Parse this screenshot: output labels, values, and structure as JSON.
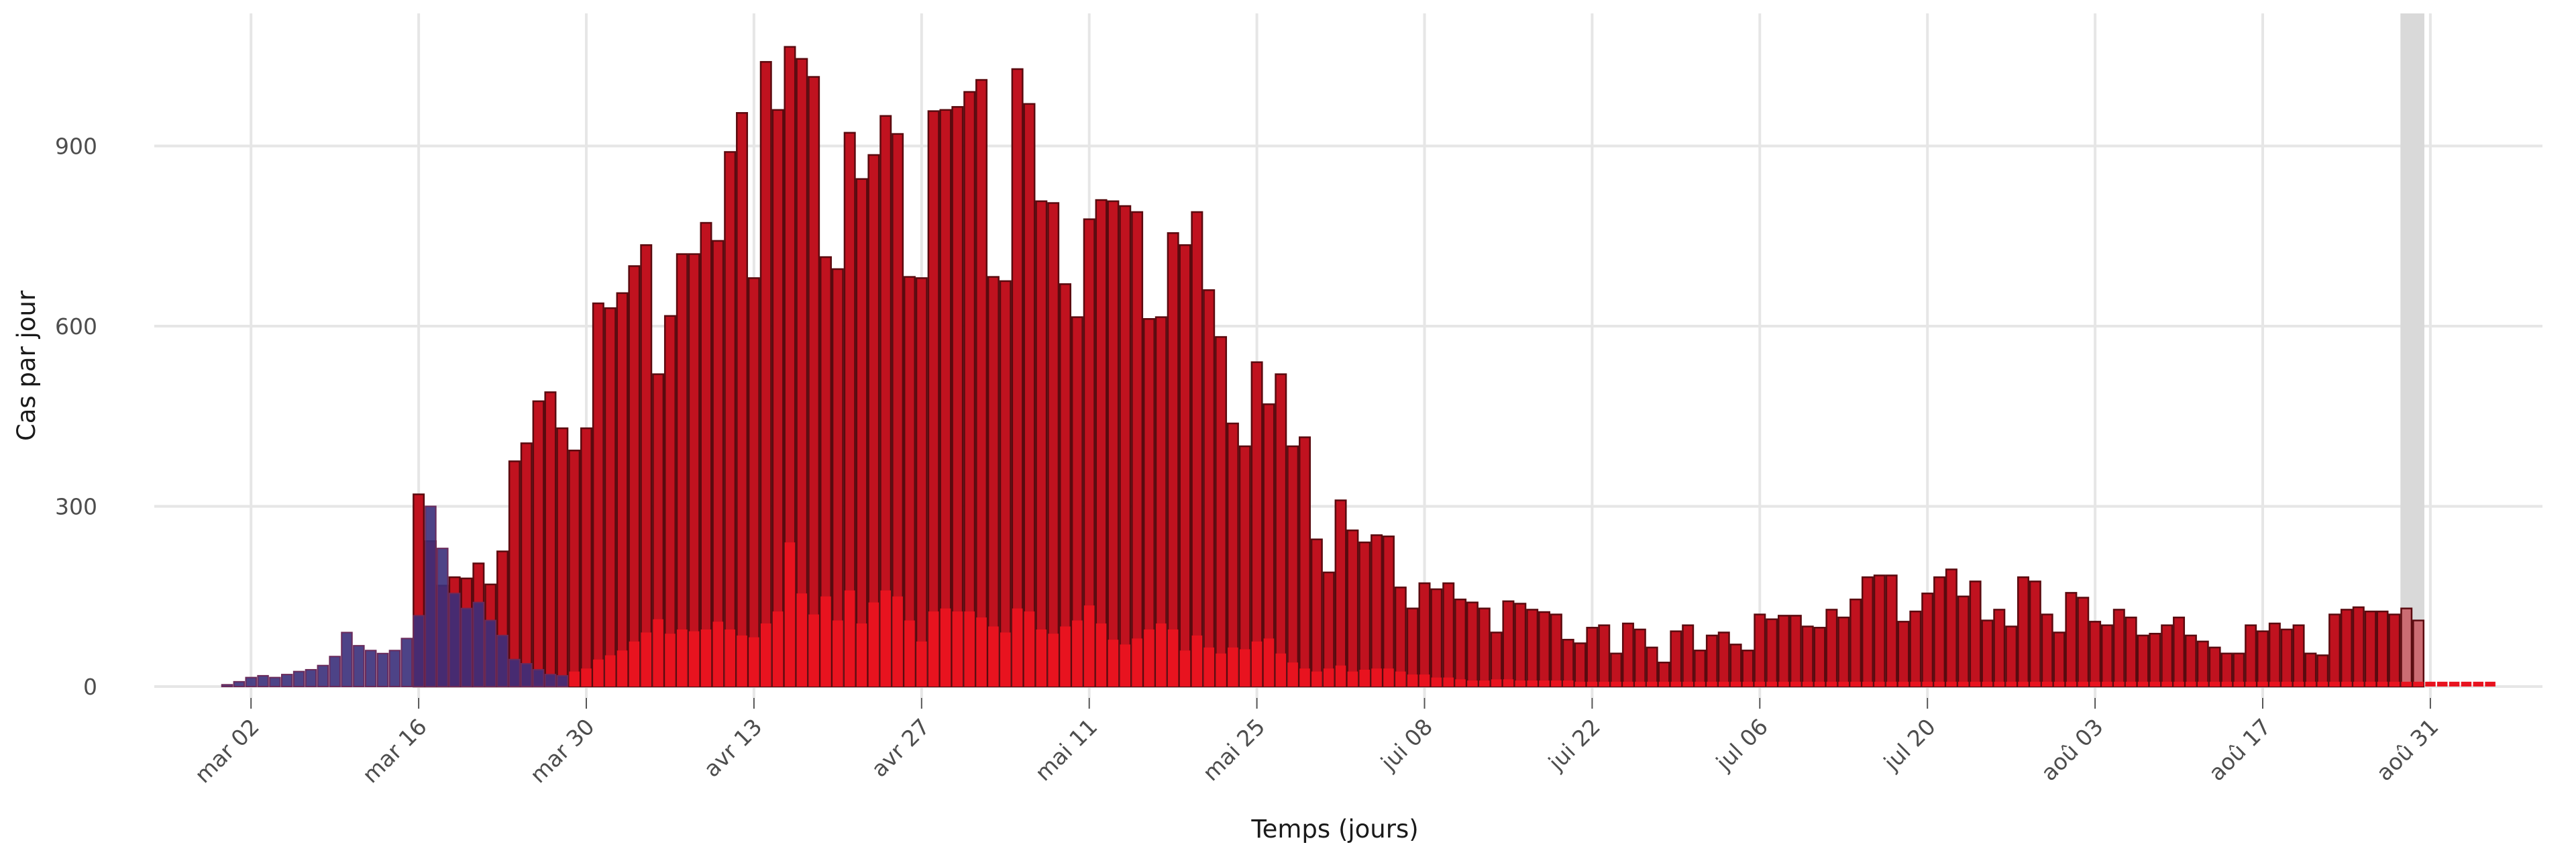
{
  "chart_data": {
    "type": "bar",
    "xlabel": "Temps (jours)",
    "ylabel": "Cas par jour",
    "ylim": [
      0,
      1080
    ],
    "yticks": [
      0,
      300,
      600,
      900
    ],
    "x_tick_labels": [
      "mar 02",
      "mar 16",
      "mar 30",
      "avr 13",
      "avr 27",
      "mai 11",
      "mai 25",
      "jui 08",
      "jui 22",
      "jul 06",
      "jul 20",
      "aoû 03",
      "aoû 17",
      "aoû 31"
    ],
    "start_date": "févr 28",
    "grid": true,
    "legend": "none",
    "highlight_last_days": 2,
    "colors": {
      "total_fill": "#c0121f",
      "total_edge": "#5a0a0f",
      "subset_fill": "#e8131f",
      "early_fill": "#3a2f7a",
      "early_edge": "#6a2a5a",
      "highlight": "#d9d9d9",
      "grid": "#e6e6e6"
    },
    "series": [
      {
        "values": [
          0,
          0,
          0,
          0,
          0,
          0,
          0,
          0,
          0,
          0,
          0,
          0,
          0,
          0,
          0,
          0,
          320,
          242,
          168,
          182,
          180,
          205,
          170,
          225,
          375,
          405,
          475,
          490,
          430,
          393,
          430,
          638,
          630,
          655,
          700,
          735,
          520,
          617,
          720,
          720,
          772,
          742,
          890,
          955,
          680,
          1040,
          960,
          1065,
          1045,
          1015,
          715,
          695,
          922,
          845,
          885,
          950,
          920,
          682,
          680,
          958,
          960,
          965,
          990,
          1010,
          682,
          675,
          1028,
          970,
          808,
          805,
          670,
          615,
          778,
          810,
          808,
          800,
          790,
          612,
          615,
          755,
          735,
          790,
          660,
          582,
          438,
          400,
          540,
          470,
          520,
          400,
          415,
          245,
          190,
          310,
          260,
          240,
          252,
          250,
          165,
          130,
          172,
          162,
          172,
          145,
          140,
          130,
          90,
          142,
          138,
          128,
          124,
          120,
          78,
          72,
          98,
          102,
          55,
          105,
          95,
          65,
          40,
          92,
          102,
          60,
          85,
          90,
          70,
          60,
          120,
          112,
          118,
          118,
          100,
          98,
          128,
          115,
          145,
          182,
          185,
          185,
          108,
          125,
          155,
          182,
          195,
          150,
          175,
          110,
          128,
          100,
          182,
          175,
          120,
          90,
          156,
          148,
          108,
          102,
          128,
          115,
          85,
          88,
          102,
          115,
          85,
          75,
          65,
          55,
          55,
          102,
          92,
          105,
          95,
          102,
          55,
          52,
          120,
          128,
          132,
          125,
          125,
          120,
          130,
          110
        ]
      },
      {
        "values": [
          0,
          0,
          0,
          0,
          0,
          0,
          0,
          0,
          0,
          0,
          0,
          0,
          0,
          0,
          0,
          0,
          0,
          0,
          0,
          0,
          0,
          0,
          0,
          0,
          0,
          2,
          5,
          10,
          15,
          25,
          30,
          45,
          52,
          60,
          75,
          90,
          112,
          88,
          95,
          92,
          95,
          108,
          95,
          85,
          82,
          105,
          125,
          240,
          155,
          120,
          150,
          110,
          160,
          105,
          140,
          160,
          150,
          110,
          75,
          125,
          130,
          125,
          125,
          115,
          100,
          90,
          130,
          125,
          95,
          88,
          100,
          110,
          135,
          105,
          78,
          70,
          80,
          95,
          105,
          95,
          60,
          85,
          65,
          55,
          65,
          62,
          75,
          80,
          55,
          40,
          30,
          25,
          30,
          35,
          25,
          28,
          30,
          30,
          25,
          20,
          20,
          15,
          15,
          12,
          10,
          10,
          12,
          12,
          10,
          10,
          10,
          10,
          10,
          8,
          8,
          8,
          8,
          8,
          8,
          8,
          8,
          8,
          8,
          8,
          8,
          8,
          8,
          8,
          8,
          8,
          8,
          8,
          8,
          8,
          8,
          8,
          8,
          8,
          8,
          8,
          8,
          8,
          8,
          8,
          8,
          8,
          8,
          8,
          8,
          8,
          8,
          8,
          8,
          8,
          8,
          8,
          8,
          8,
          8,
          8,
          8,
          8,
          8,
          8,
          8,
          8,
          8,
          8,
          8,
          8,
          8,
          8,
          8,
          8,
          8,
          8,
          8,
          8,
          8,
          8,
          8,
          8,
          8,
          8,
          8,
          8,
          8,
          8,
          8,
          8
        ]
      },
      {
        "values": [
          3,
          8,
          15,
          18,
          15,
          20,
          25,
          28,
          35,
          50,
          90,
          68,
          60,
          55,
          60,
          80,
          118,
          300,
          230,
          155,
          130,
          140,
          110,
          85,
          45,
          38,
          28,
          20,
          18
        ]
      }
    ]
  }
}
